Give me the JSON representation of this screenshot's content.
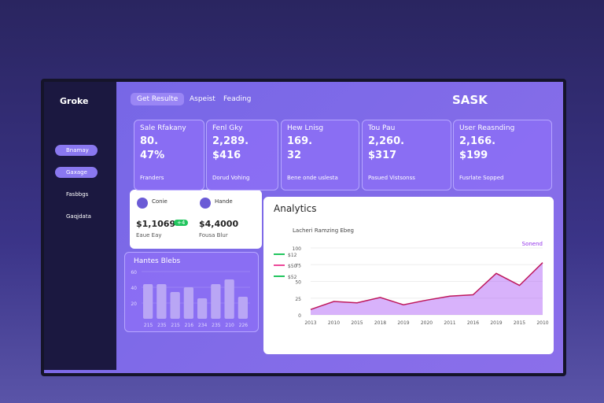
{
  "app": {
    "brand": "Groke"
  },
  "topbar": {
    "tabs": [
      "Get Resulte",
      "Aspeist",
      "Feading"
    ],
    "title": "SASK"
  },
  "sidebar": {
    "items": [
      "Bnamay",
      "Gaxage",
      "Fasbbgs",
      "Gaqjdata"
    ]
  },
  "cards": [
    {
      "title": "Sale Rfakany",
      "value": "80.",
      "sub": "47%",
      "footer": "Franders"
    },
    {
      "title": "Fenl Gky",
      "value": "2,289.",
      "sub": "$416",
      "footer": "Dorud Vohing"
    },
    {
      "title": "Hew Lnisg",
      "value": "169.",
      "sub": "32",
      "footer": "Bene onde uslesta"
    },
    {
      "title": "Tou Pau",
      "value": "2,260.",
      "sub": "$317",
      "footer": "Pasued Vistsonss"
    },
    {
      "title": "User Reasnding",
      "value": "2,166.",
      "sub": "$199",
      "footer": "Fusrlate Sopped"
    }
  ],
  "profiles": [
    {
      "name": "Conie",
      "amount": "$1,1069",
      "badge": "+4",
      "note": "Eaue Eay"
    },
    {
      "name": "Hande",
      "amount": "$4,4000",
      "note": "Fousa Blur"
    }
  ],
  "chart_data": [
    {
      "type": "bar",
      "title": "Hantes Blebs",
      "categories": [
        "215",
        "235",
        "215",
        "216",
        "234",
        "235",
        "210",
        "226"
      ],
      "values": [
        44,
        44,
        34,
        40,
        26,
        44,
        50,
        28
      ],
      "color": "#b9a6f5",
      "ylim": [
        0,
        60
      ],
      "yticks": [
        20,
        40,
        60
      ]
    },
    {
      "type": "area",
      "title": "Analytics",
      "legend": [
        {
          "name": "$12",
          "color": "#22c55e"
        },
        {
          "name": "$50",
          "color": "#ec4899"
        },
        {
          "name": "$52",
          "color": "#22c55e"
        }
      ],
      "subtitle": "Lacheri Ramzing Ebeg",
      "categories": [
        "2013",
        "2010",
        "2015",
        "2018",
        "2019",
        "2020",
        "2011",
        "2016",
        "2019",
        "2015",
        "2010"
      ],
      "series": [
        {
          "name": "Sonend",
          "color": "#a855f7",
          "values": [
            8,
            20,
            18,
            26,
            15,
            22,
            28,
            30,
            62,
            44,
            78
          ]
        }
      ],
      "ylim": [
        0,
        100
      ],
      "yticks": [
        0,
        25,
        50,
        75,
        100
      ]
    }
  ]
}
